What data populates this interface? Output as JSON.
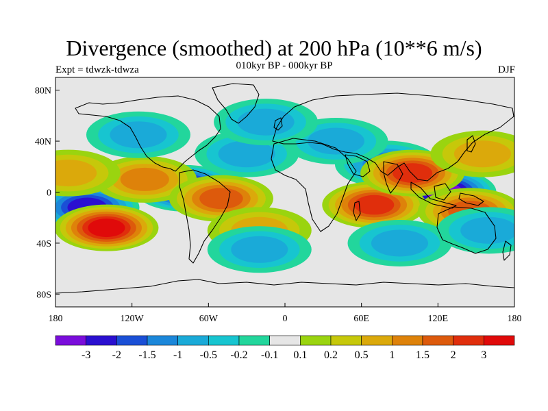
{
  "title": "Divergence (smoothed) at 200 hPa (10**6 m/s)",
  "subtitle": "010kyr BP - 000kyr BP",
  "left_string": "Expt = tdwzk-tdwza",
  "right_string": "DJF",
  "lat_ticks": [
    "80N",
    "40N",
    "0",
    "40S",
    "80S"
  ],
  "lon_ticks": [
    "180",
    "120W",
    "60W",
    "0",
    "60E",
    "120E",
    "180"
  ],
  "colorbar": {
    "colors": [
      "#7a0ddb",
      "#2a0fd0",
      "#1a4fd6",
      "#1b87da",
      "#1aaad8",
      "#17c5d0",
      "#22d69c",
      "#e6e6e6",
      "#9ad40f",
      "#c6c80a",
      "#dba90b",
      "#de820a",
      "#dd5a0c",
      "#e02e0c",
      "#e00a0a"
    ],
    "labels": [
      "-3",
      "-2",
      "-1.5",
      "-1",
      "-0.5",
      "-0.2",
      "-0.1",
      "0.1",
      "0.2",
      "0.5",
      "1",
      "1.5",
      "2",
      "3"
    ]
  },
  "chart_data": {
    "type": "heatmap",
    "title": "Divergence (smoothed) at 200 hPa (10**6 m/s)",
    "subtitle": "010kyr BP - 000kyr BP",
    "season": "DJF",
    "experiment": "tdwzk-tdwza",
    "x_range": [
      -180,
      180
    ],
    "y_range": [
      -90,
      90
    ],
    "x_ticks": [
      -180,
      -120,
      -60,
      0,
      60,
      120,
      180
    ],
    "y_ticks": [
      80,
      40,
      0,
      -40,
      -80
    ],
    "levels": [
      -3,
      -2,
      -1.5,
      -1,
      -0.5,
      -0.2,
      -0.1,
      0.1,
      0.2,
      0.5,
      1,
      1.5,
      2,
      3
    ],
    "features": [
      {
        "lon": -78,
        "lat": 3,
        "value": -3.5
      },
      {
        "lon": -155,
        "lat": -12,
        "value": -2.0
      },
      {
        "lon": 125,
        "lat": 0,
        "value": -3.5
      },
      {
        "lon": 80,
        "lat": 22,
        "value": -1.0
      },
      {
        "lon": -30,
        "lat": 30,
        "value": -0.8
      },
      {
        "lon": 40,
        "lat": 40,
        "value": -0.7
      },
      {
        "lon": -140,
        "lat": -28,
        "value": 3.0
      },
      {
        "lon": -110,
        "lat": 10,
        "value": 1.2
      },
      {
        "lon": -50,
        "lat": -5,
        "value": 1.5
      },
      {
        "lon": 70,
        "lat": -10,
        "value": 2.0
      },
      {
        "lon": 100,
        "lat": 15,
        "value": 2.0
      },
      {
        "lon": 145,
        "lat": -15,
        "value": 1.5
      },
      {
        "lon": -170,
        "lat": 15,
        "value": 0.7
      },
      {
        "lon": -20,
        "lat": -30,
        "value": 0.5
      },
      {
        "lon": 155,
        "lat": 30,
        "value": 0.6
      },
      {
        "lon": -115,
        "lat": 45,
        "value": -0.6
      },
      {
        "lon": -15,
        "lat": 55,
        "value": -0.5
      },
      {
        "lon": -20,
        "lat": -45,
        "value": -0.8
      },
      {
        "lon": 90,
        "lat": -40,
        "value": -0.7
      },
      {
        "lon": 160,
        "lat": -30,
        "value": -0.6
      }
    ]
  }
}
